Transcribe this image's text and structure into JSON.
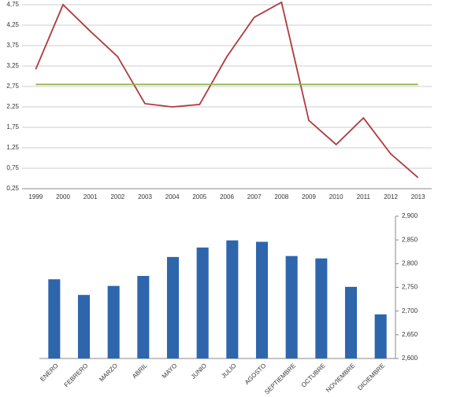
{
  "chart_data": [
    {
      "type": "line",
      "categories": [
        "1999",
        "2000",
        "2001",
        "2002",
        "2003",
        "2004",
        "2005",
        "2006",
        "2007",
        "2008",
        "2009",
        "2010",
        "2011",
        "2012",
        "2013"
      ],
      "series": [
        {
          "color": "#b03a3e",
          "values": [
            3.17,
            4.75,
            4.1,
            3.48,
            2.33,
            2.25,
            2.31,
            3.48,
            4.44,
            4.81,
            1.92,
            1.33,
            1.98,
            1.1,
            0.52
          ]
        },
        {
          "color": "#8db040",
          "values": [
            2.8,
            2.8,
            2.8,
            2.8,
            2.8,
            2.8,
            2.8,
            2.8,
            2.8,
            2.8,
            2.8,
            2.8,
            2.8,
            2.8,
            2.8
          ]
        }
      ],
      "ylim": [
        0.25,
        4.75
      ],
      "yticks": [
        {
          "value": 0.25,
          "label": "0,25"
        },
        {
          "value": 0.75,
          "label": "0,75"
        },
        {
          "value": 1.25,
          "label": "1,25"
        },
        {
          "value": 1.75,
          "label": "1,75"
        },
        {
          "value": 2.25,
          "label": "2,25"
        },
        {
          "value": 2.75,
          "label": "2,75"
        },
        {
          "value": 3.25,
          "label": "3,25"
        },
        {
          "value": 3.75,
          "label": "3,75"
        },
        {
          "value": 4.25,
          "label": "4,25"
        },
        {
          "value": 4.75,
          "label": "4,75"
        }
      ],
      "grid": true
    },
    {
      "type": "bar",
      "categories": [
        "ENERO",
        "FEBRERO",
        "MARZO",
        "ABRIL",
        "MAYO",
        "JUNIO",
        "JULIO",
        "AGOSTO",
        "SEPTIEMBRE",
        "OCTUBRE",
        "NOVIEMBRE",
        "DICIEMBRE"
      ],
      "values": [
        2767,
        2734,
        2753,
        2774,
        2814,
        2834,
        2849,
        2846,
        2816,
        2811,
        2751,
        2693
      ],
      "color": "#2e66ad",
      "ylim": [
        2600,
        2900
      ],
      "yticks": [
        {
          "value": 2600,
          "label": "2,600"
        },
        {
          "value": 2650,
          "label": "2,650"
        },
        {
          "value": 2700,
          "label": "2,700"
        },
        {
          "value": 2750,
          "label": "2,750"
        },
        {
          "value": 2800,
          "label": "2,800"
        },
        {
          "value": 2850,
          "label": "2,850"
        },
        {
          "value": 2900,
          "label": "2,900"
        }
      ],
      "grid": false
    }
  ]
}
